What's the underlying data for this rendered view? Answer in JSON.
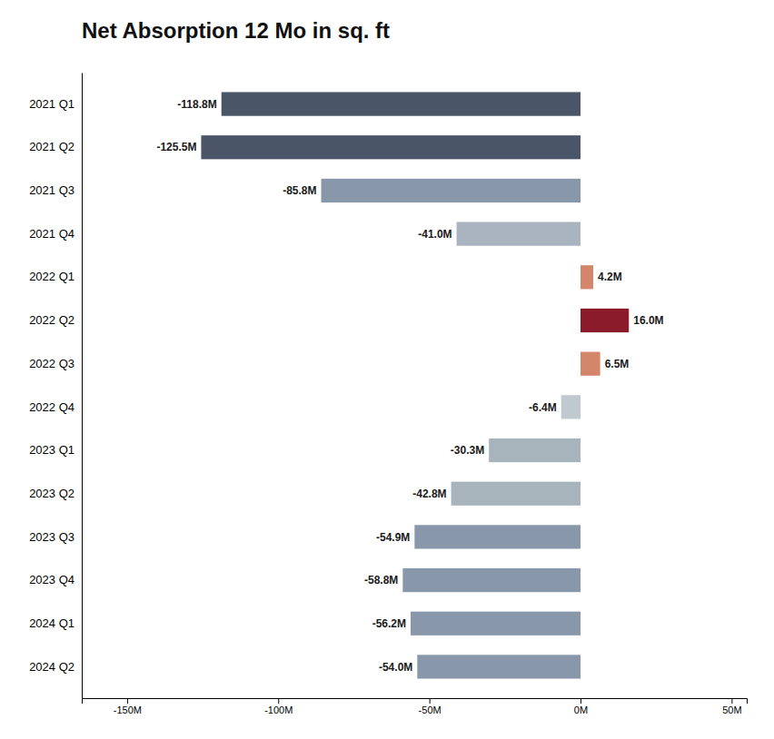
{
  "chart_data": {
    "type": "bar",
    "orientation": "horizontal",
    "title": "Net Absorption 12 Mo in sq. ft",
    "categories": [
      "2021 Q1",
      "2021 Q2",
      "2021 Q3",
      "2021 Q4",
      "2022 Q1",
      "2022 Q2",
      "2022 Q3",
      "2022 Q4",
      "2023 Q1",
      "2023 Q2",
      "2023 Q3",
      "2023 Q4",
      "2024 Q1",
      "2024 Q2"
    ],
    "values": [
      -118.8,
      -125.5,
      -85.8,
      -41.0,
      4.2,
      16.0,
      6.5,
      -6.4,
      -30.3,
      -42.8,
      -54.9,
      -58.8,
      -56.2,
      -54.0
    ],
    "value_labels": [
      "-118.8M",
      "-125.5M",
      "-85.8M",
      "-41.0M",
      "4.2M",
      "16.0M",
      "6.5M",
      "-6.4M",
      "-30.3M",
      "-42.8M",
      "-54.9M",
      "-58.8M",
      "-56.2M",
      "-54.0M"
    ],
    "colors": [
      "#4a5568",
      "#4a5568",
      "#8898aa",
      "#aab4c0",
      "#d4866a",
      "#8b1a2a",
      "#d4866a",
      "#c0c8d0",
      "#a8b4bc",
      "#a8b4bc",
      "#8898aa",
      "#8898aa",
      "#8898aa",
      "#8898aa"
    ],
    "data_labels": true,
    "grid": false,
    "xlim": [
      -165,
      55
    ],
    "xticks": [
      {
        "value": -150,
        "label": "-150M"
      },
      {
        "value": -100,
        "label": "-100M"
      },
      {
        "value": -50,
        "label": "-50M"
      },
      {
        "value": 0,
        "label": "0M"
      },
      {
        "value": 50,
        "label": "50M"
      }
    ]
  }
}
